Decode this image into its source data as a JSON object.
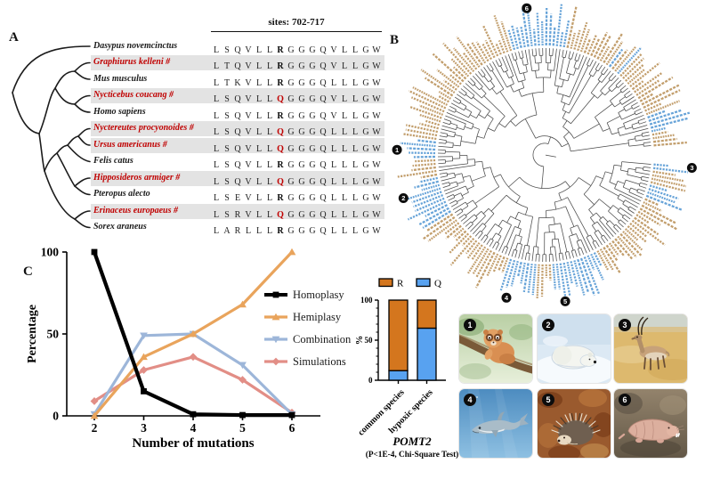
{
  "panelA": {
    "label": "A",
    "sites_header": "sites: 702-717",
    "variant_site_index": 7,
    "species": [
      {
        "name": "Dasypus novemcinctus",
        "red": false,
        "seq": "LSQVLLRGGGQVLLGW"
      },
      {
        "name": "Graphiurus kelleni #",
        "red": true,
        "seq": "LTQVLLRGGGQVLLGW"
      },
      {
        "name": "Mus musculus",
        "red": false,
        "seq": "LTKVLLRGGGQLLLGW"
      },
      {
        "name": "Nycticebus coucang #",
        "red": true,
        "seq": "LSQVLLQGGGQVLLGW"
      },
      {
        "name": "Homo sapiens",
        "red": false,
        "seq": "LSQVLLRGGGQVLLGW"
      },
      {
        "name": "Nyctereutes procyonoides #",
        "red": true,
        "seq": "LSQVLLQGGGQLLLGW"
      },
      {
        "name": "Ursus americanus #",
        "red": true,
        "seq": "LSQVLLQGGGQLLLGW"
      },
      {
        "name": "Felis catus",
        "red": false,
        "seq": "LSQVLLRGGGQLLLGW"
      },
      {
        "name": "Hipposideros armiger #",
        "red": true,
        "seq": "LSQVLLQGGGQLLLGW"
      },
      {
        "name": "Pteropus alecto",
        "red": false,
        "seq": "LSEVLLRGGGQLLLGW"
      },
      {
        "name": "Erinaceus europaeus #",
        "red": true,
        "seq": "LSRVLLQGGGQLLLGW"
      },
      {
        "name": "Sorex araneus",
        "red": false,
        "seq": "LARLLLRGGGQLLLGW"
      }
    ]
  },
  "panelB": {
    "label": "B",
    "taxa_count": 188,
    "branch_color": "#4a4a4a",
    "label_color_common": "#bf9965",
    "label_color_hypoxic": "#5f9fd6",
    "hypoxic_angle_ranges": [
      [
        343,
        372
      ],
      [
        70,
        78
      ],
      [
        88,
        98
      ],
      [
        106,
        113
      ],
      [
        153,
        176
      ],
      [
        183,
        199
      ],
      [
        238,
        258
      ],
      [
        268,
        277
      ]
    ],
    "markers": [
      {
        "n": "1",
        "angle_deg": 272
      },
      {
        "n": "2",
        "angle_deg": 253
      },
      {
        "n": "3",
        "angle_deg": 95
      },
      {
        "n": "4",
        "angle_deg": 195
      },
      {
        "n": "5",
        "angle_deg": 172
      },
      {
        "n": "6",
        "angle_deg": 353
      }
    ]
  },
  "panelC_label": "C",
  "chart_data": [
    {
      "type": "line",
      "xlabel": "Number of mutations",
      "ylabel": "Percentage",
      "x": [
        2,
        3,
        4,
        5,
        6
      ],
      "yticks": [
        0,
        50,
        100
      ],
      "ylim": [
        0,
        100
      ],
      "legend_position": "right",
      "grid": false,
      "series": [
        {
          "name": "Homoplasy",
          "color": "#000000",
          "marker": "square",
          "values": [
            100,
            15,
            1,
            0.5,
            0.5
          ]
        },
        {
          "name": "Hemiplasy",
          "color": "#e9a45c",
          "marker": "triangle-up",
          "values": [
            0,
            36,
            50,
            68,
            100
          ]
        },
        {
          "name": "Combination",
          "color": "#9db6d9",
          "marker": "triangle-down",
          "values": [
            1,
            49,
            50,
            31,
            1
          ]
        },
        {
          "name": "Simulations",
          "color": "#e28e86",
          "marker": "diamond",
          "values": [
            9,
            28,
            36,
            22,
            2
          ]
        }
      ]
    },
    {
      "type": "stacked_bar",
      "categories": [
        "common species",
        "hypoxic species"
      ],
      "ylabel": "%",
      "yticks": [
        0,
        50,
        100
      ],
      "ylim": [
        0,
        100
      ],
      "title": "POMT2",
      "subtitle": "(P<1E-4, Chi-Square Test)",
      "series": [
        {
          "name": "R",
          "color": "#d4761e",
          "values": [
            88,
            35
          ]
        },
        {
          "name": "Q",
          "color": "#58a2f0",
          "values": [
            12,
            65
          ]
        }
      ]
    }
  ],
  "animals": [
    {
      "n": "1",
      "icon": "slow-loris-illustration"
    },
    {
      "n": "2",
      "icon": "polar-bear-illustration"
    },
    {
      "n": "3",
      "icon": "tibetan-antelope-illustration"
    },
    {
      "n": "4",
      "icon": "dolphin-illustration"
    },
    {
      "n": "5",
      "icon": "hedgehog-illustration"
    },
    {
      "n": "6",
      "icon": "naked-mole-rat-illustration"
    }
  ]
}
